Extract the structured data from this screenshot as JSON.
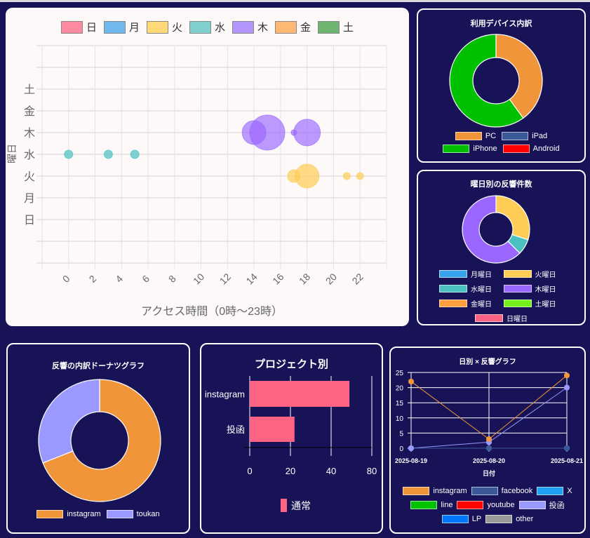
{
  "chart_data": [
    {
      "type": "bubble",
      "legend": [
        "日",
        "月",
        "火",
        "水",
        "木",
        "金",
        "土"
      ],
      "legend_colors": [
        "#ff8aa0",
        "#6fb9ef",
        "#ffd978",
        "#7fd0cd",
        "#b395fb",
        "#ffb874",
        "#6fb56f"
      ],
      "xlabel": "アクセス時間（0時〜23時）",
      "ylabel": "曜日",
      "xlim": [
        -2,
        24
      ],
      "ylim": [
        -2,
        8
      ],
      "x_ticks": [
        "0",
        "2",
        "4",
        "6",
        "8",
        "10",
        "12",
        "14",
        "16",
        "18",
        "20",
        "22"
      ],
      "y_ticks": [
        "日",
        "月",
        "火",
        "水",
        "木",
        "金",
        "土"
      ],
      "series": [
        {
          "name": "水",
          "color": "rgba(75,192,192,0.7)",
          "points": [
            {
              "x": 0,
              "y": 3,
              "r": 6
            },
            {
              "x": 3,
              "y": 3,
              "r": 6
            },
            {
              "x": 5,
              "y": 3,
              "r": 6
            }
          ]
        },
        {
          "name": "木",
          "color": "rgba(153,102,255,0.65)",
          "points": [
            {
              "x": 14,
              "y": 4,
              "r": 17
            },
            {
              "x": 15,
              "y": 4,
              "r": 25
            },
            {
              "x": 17,
              "y": 4,
              "r": 4
            },
            {
              "x": 18,
              "y": 4,
              "r": 19
            }
          ]
        },
        {
          "name": "火",
          "color": "rgba(255,205,86,0.7)",
          "points": [
            {
              "x": 17,
              "y": 2,
              "r": 9
            },
            {
              "x": 18,
              "y": 2,
              "r": 17
            },
            {
              "x": 21,
              "y": 2,
              "r": 5
            },
            {
              "x": 22,
              "y": 2,
              "r": 5
            }
          ]
        }
      ]
    },
    {
      "type": "pie",
      "title": "利用デバイス内訳",
      "labels": [
        "PC",
        "iPad",
        "iPhone",
        "Android"
      ],
      "values": [
        2,
        0,
        3,
        0
      ],
      "colors": [
        "#f0953a",
        "#3b5998",
        "#00c000",
        "#ff0000"
      ]
    },
    {
      "type": "pie",
      "title": "曜日別の反響件数",
      "labels": [
        "月曜日",
        "火曜日",
        "水曜日",
        "木曜日",
        "金曜日",
        "土曜日",
        "日曜日"
      ],
      "values": [
        0,
        12,
        3,
        25,
        0,
        0,
        0
      ],
      "colors": [
        "#36a2eb",
        "#ffcd56",
        "#4bc0c0",
        "#9966ff",
        "#ff9f40",
        "#76ee1a",
        "#ff6384"
      ]
    },
    {
      "type": "pie",
      "title": "反響の内訳ドーナツグラフ",
      "labels": [
        "instagram",
        "toukan"
      ],
      "values": [
        49,
        22
      ],
      "colors": [
        "#f0953a",
        "#9999ff"
      ]
    },
    {
      "type": "bar",
      "orientation": "horizontal",
      "title": "プロジェクト別",
      "categories": [
        "instagram",
        "投函"
      ],
      "series": [
        {
          "name": "通常",
          "values": [
            49,
            22
          ],
          "color": "#ff6384"
        }
      ],
      "x_ticks": [
        "0",
        "20",
        "40",
        "80"
      ]
    },
    {
      "type": "line",
      "title": "日別 × 反響グラフ",
      "xlabel": "日付",
      "x": [
        "2025-08-19",
        "2025-08-20",
        "2025-08-21"
      ],
      "ylim": [
        0,
        25
      ],
      "y_ticks": [
        "0",
        "5",
        "10",
        "15",
        "20",
        "25"
      ],
      "series": [
        {
          "name": "instagram",
          "color": "#f0953a",
          "values": [
            22,
            3,
            24
          ]
        },
        {
          "name": "facebook",
          "color": "#3b5998",
          "values": [
            0,
            0,
            0
          ]
        },
        {
          "name": "X",
          "color": "#1da1f2",
          "values": [
            0,
            0,
            0
          ]
        },
        {
          "name": "line",
          "color": "#00c300",
          "values": [
            0,
            0,
            0
          ]
        },
        {
          "name": "youtube",
          "color": "#ff0000",
          "values": [
            0,
            0,
            0
          ]
        },
        {
          "name": "投函",
          "color": "#9999ff",
          "values": [
            0,
            2,
            20
          ]
        },
        {
          "name": "LP",
          "color": "#0077ff",
          "values": [
            0,
            0,
            0
          ]
        },
        {
          "name": "other",
          "color": "#999999",
          "values": [
            0,
            0,
            0
          ]
        }
      ]
    }
  ]
}
